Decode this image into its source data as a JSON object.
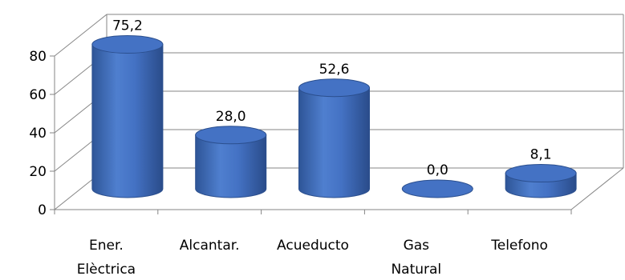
{
  "chart_data": {
    "type": "bar",
    "style": "3d-cylinder",
    "categories": [
      [
        "Ener.",
        "Elèctrica"
      ],
      [
        "Alcantar."
      ],
      [
        "Acueducto"
      ],
      [
        "Gas",
        "Natural"
      ],
      [
        "Telefono"
      ]
    ],
    "values": [
      75.2,
      28.0,
      52.6,
      0.0,
      8.1
    ],
    "data_labels": [
      "75,2",
      "28,0",
      "52,6",
      "0,0",
      "8,1"
    ],
    "ylim": [
      0,
      80
    ],
    "yticks": [
      "0",
      "20",
      "40",
      "60",
      "80"
    ],
    "ytick_values": [
      0,
      20,
      40,
      60,
      80
    ],
    "grid": true,
    "legend": "none",
    "bar_color": "#4472C4",
    "bar_dark": "#2B4F8E",
    "bar_light": "#7EA3E0",
    "grid_color": "#868686"
  }
}
